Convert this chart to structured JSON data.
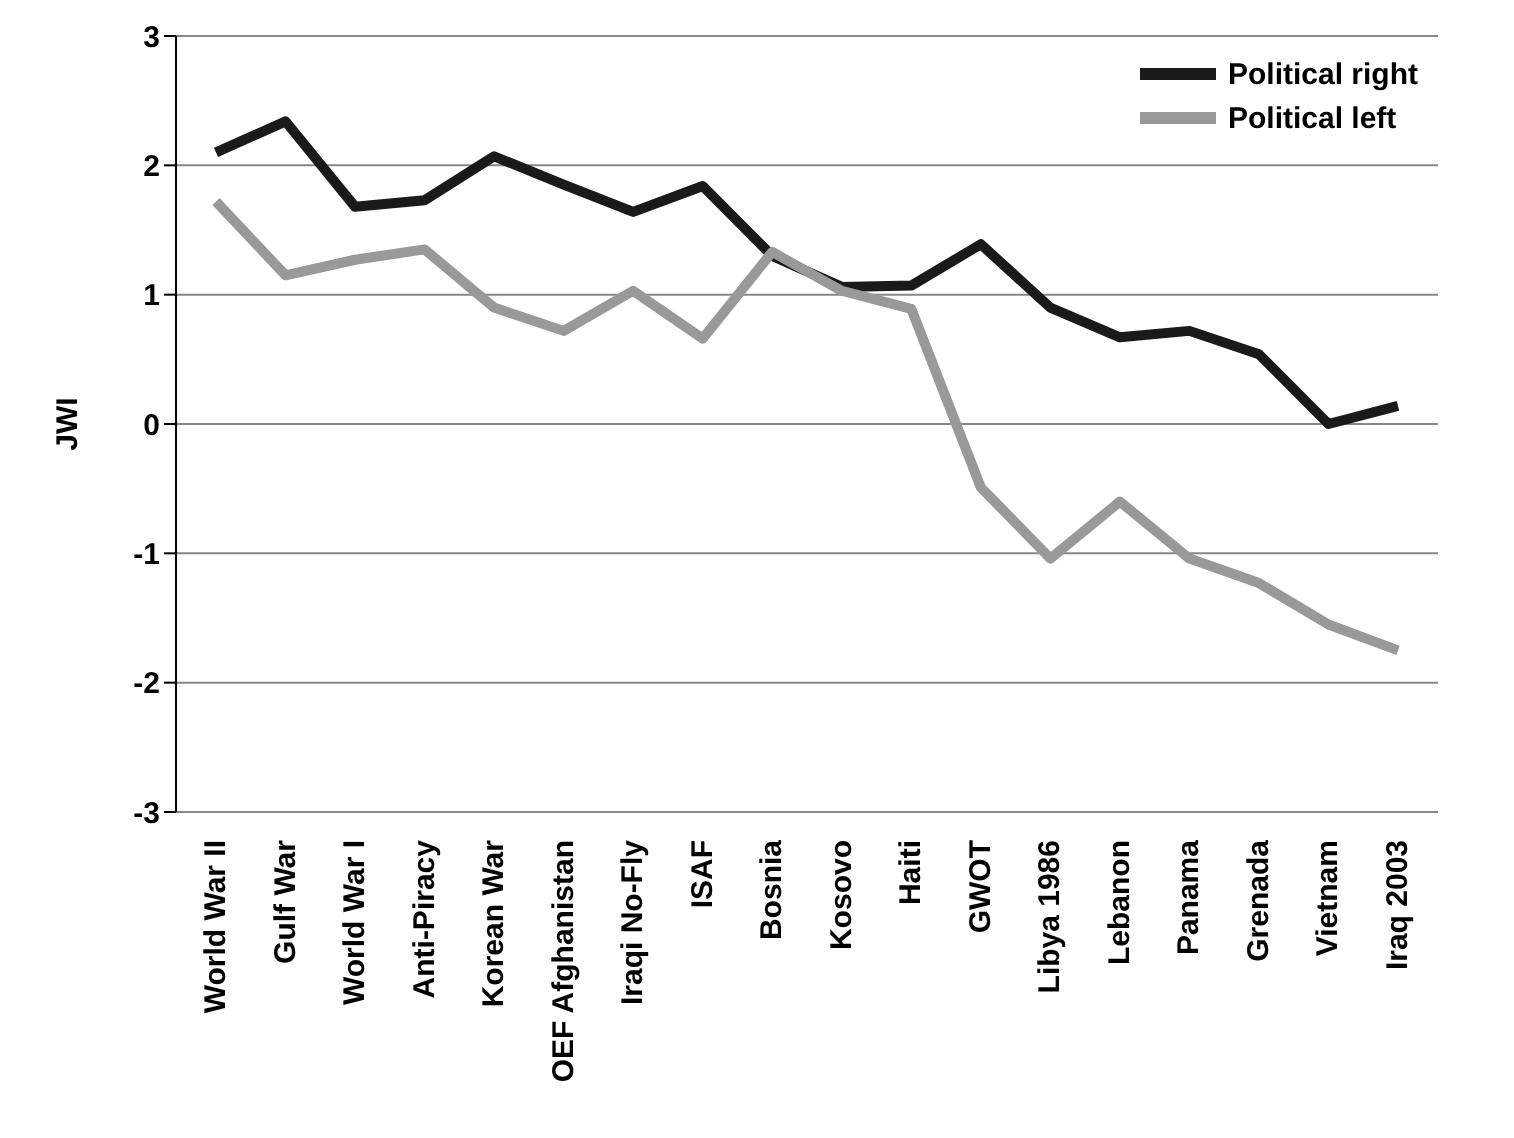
{
  "chart_data": {
    "type": "line",
    "ylabel": "JWI",
    "categories": [
      "World War II",
      "Gulf War",
      "World War I",
      "Anti-Piracy",
      "Korean War",
      "OEF Afghanistan",
      "Iraqi No-Fly",
      "ISAF",
      "Bosnia",
      "Kosovo",
      "Haiti",
      "GWOT",
      "Libya 1986",
      "Lebanon",
      "Panama",
      "Grenada",
      "Vietnam",
      "Iraq 2003"
    ],
    "series": [
      {
        "name": "Political right",
        "color": "#1a1a1a",
        "values": [
          2.1,
          2.34,
          1.68,
          1.73,
          2.07,
          1.85,
          1.64,
          1.84,
          1.3,
          1.06,
          1.07,
          1.39,
          0.9,
          0.67,
          0.72,
          0.54,
          0.0,
          0.14
        ]
      },
      {
        "name": "Political left",
        "color": "#999999",
        "values": [
          1.72,
          1.15,
          1.27,
          1.35,
          0.9,
          0.72,
          1.03,
          0.66,
          1.33,
          1.03,
          0.89,
          -0.49,
          -1.04,
          -0.6,
          -1.04,
          -1.23,
          -1.55,
          -1.75
        ]
      }
    ],
    "ylim": [
      -3,
      3
    ],
    "yticks": [
      -3,
      -2,
      -1,
      0,
      1,
      2,
      3
    ],
    "grid": "y",
    "legend": "top right",
    "marker": "none",
    "line_style": "solid"
  }
}
